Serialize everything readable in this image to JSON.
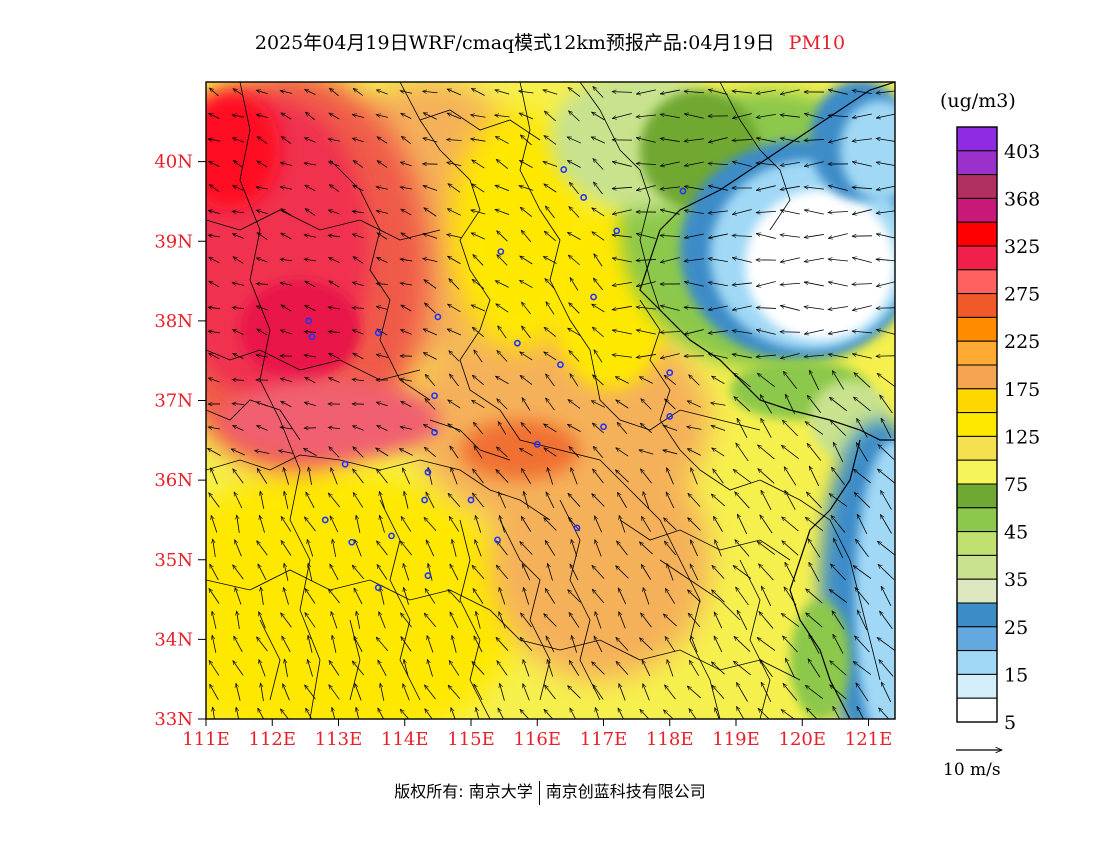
{
  "title": {
    "main": "2025年04月19日WRF/cmaq模式12km预报产品:04月19日",
    "pollutant": "PM10"
  },
  "axes": {
    "lat_labels": [
      "40N",
      "39N",
      "38N",
      "37N",
      "36N",
      "35N",
      "34N",
      "33N"
    ],
    "lon_labels": [
      "111E",
      "112E",
      "113E",
      "114E",
      "115E",
      "116E",
      "117E",
      "118E",
      "119E",
      "120E",
      "121E"
    ],
    "lat_values": [
      40,
      39,
      38,
      37,
      36,
      35,
      34,
      33
    ],
    "lon_values": [
      111,
      112,
      113,
      114,
      115,
      116,
      117,
      118,
      119,
      120,
      121
    ],
    "lat_range": [
      33,
      41
    ],
    "lon_range": [
      111,
      121.4
    ]
  },
  "colorbar": {
    "unit": "(ug/m3)",
    "levels": [
      "403",
      "368",
      "325",
      "275",
      "225",
      "175",
      "125",
      "75",
      "45",
      "35",
      "25",
      "15",
      "5"
    ],
    "colors": [
      "#8f2be2",
      "#9b30cc",
      "#b03060",
      "#c8197a",
      "#ff0000",
      "#f0204a",
      "#ff6060",
      "#f05a28",
      "#ff8c00",
      "#ffaa33",
      "#f5a552",
      "#ffd700",
      "#ffe800",
      "#f5e050",
      "#f5f55a",
      "#6fa832",
      "#8cc84b",
      "#c0e070",
      "#c8e28e",
      "#dde8c0",
      "#3c8cc8",
      "#64a8e0",
      "#a0d8f5",
      "#d4eefa",
      "#ffffff"
    ]
  },
  "wind_reference": {
    "label": "10 m/s"
  },
  "stations": [
    [
      116.4,
      39.9
    ],
    [
      116.7,
      39.55
    ],
    [
      117.2,
      39.13
    ],
    [
      118.2,
      39.63
    ],
    [
      115.45,
      38.87
    ],
    [
      116.85,
      38.3
    ],
    [
      114.5,
      38.05
    ],
    [
      115.7,
      37.72
    ],
    [
      116.35,
      37.45
    ],
    [
      118.0,
      37.35
    ],
    [
      113.6,
      37.85
    ],
    [
      112.55,
      38.0
    ],
    [
      112.6,
      37.8
    ],
    [
      114.45,
      37.06
    ],
    [
      114.45,
      36.6
    ],
    [
      117.0,
      36.67
    ],
    [
      118.0,
      36.8
    ],
    [
      116.0,
      36.45
    ],
    [
      113.1,
      36.2
    ],
    [
      114.35,
      36.1
    ],
    [
      115.0,
      35.75
    ],
    [
      114.3,
      35.75
    ],
    [
      112.8,
      35.5
    ],
    [
      113.2,
      35.22
    ],
    [
      113.8,
      35.3
    ],
    [
      115.4,
      35.25
    ],
    [
      116.6,
      35.4
    ],
    [
      114.35,
      34.8
    ],
    [
      113.6,
      34.65
    ]
  ],
  "copyright": {
    "left": "版权所有: 南京大学",
    "right": "南京创蓝科技有限公司"
  }
}
